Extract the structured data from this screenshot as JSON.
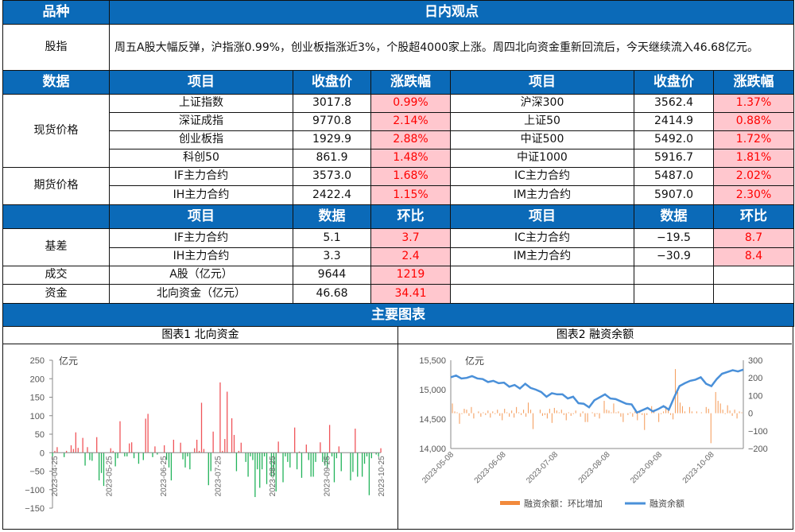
{
  "header": {
    "col1": "品种",
    "col2": "日内观点"
  },
  "index_row": {
    "label": "股指",
    "text": "周五A股大幅反弹，沪指涨0.99%，创业板指涨近3%，个股超4000家上涨。周四北向资金重新回流后，今天继续流入46.68亿元。"
  },
  "price_header": [
    "数据",
    "项目",
    "收盘价",
    "涨跌幅",
    "项目",
    "收盘价",
    "涨跌幅"
  ],
  "spot_label": "现货价格",
  "futures_label": "期货价格",
  "price_rows": [
    [
      "上证指数",
      "3017.8",
      "0.99%",
      "沪深300",
      "3562.4",
      "1.37%"
    ],
    [
      "深证成指",
      "9770.8",
      "2.14%",
      "上证50",
      "2414.9",
      "0.88%"
    ],
    [
      "创业板指",
      "1929.9",
      "2.88%",
      "中证500",
      "5492.0",
      "1.72%"
    ],
    [
      "科创50",
      "861.9",
      "1.48%",
      "中证1000",
      "5916.7",
      "1.81%"
    ],
    [
      "IF主力合约",
      "3573.0",
      "1.68%",
      "IC主力合约",
      "5487.0",
      "2.02%"
    ],
    [
      "IH主力合约",
      "2422.4",
      "1.15%",
      "IM主力合约",
      "5907.0",
      "2.30%"
    ]
  ],
  "basis_header": [
    "项目",
    "数据",
    "环比",
    "项目",
    "数据",
    "环比"
  ],
  "basis_label": "基差",
  "basis_rows": [
    [
      "IF主力合约",
      "5.1",
      "3.7",
      "IC主力合约",
      "−19.5",
      "8.7"
    ],
    [
      "IH主力合约",
      "3.3",
      "2.4",
      "IM主力合约",
      "−30.9",
      "8.4"
    ]
  ],
  "volume_row": [
    "成交",
    "A股（亿元）",
    "9644",
    "1219"
  ],
  "capital_row": [
    "资金",
    "北向资金（亿元）",
    "46.68",
    "34.41"
  ],
  "charts_header": "主要图表",
  "colors": {
    "header": "#0b6ab8",
    "pink": "#ffc7ce",
    "red": "#ff0000",
    "up": "#f0555a",
    "down": "#22b35a",
    "orange": "#f28a3c",
    "blue": "#4a90d9"
  },
  "chart_data": [
    {
      "type": "bar",
      "title": "图表1  北向资金",
      "unit": "亿元",
      "ylim": [
        -150,
        250
      ],
      "yticks": [
        250,
        200,
        150,
        100,
        50,
        0,
        -50,
        -100,
        -150
      ],
      "xticks": [
        "2023-04-25",
        "2023-05-25",
        "2023-06-25",
        "2023-07-25",
        "2023-08-25",
        "2023-09-25",
        "2023-10-25"
      ],
      "values": [
        -10,
        5,
        15,
        0,
        0,
        -12,
        5,
        0,
        20,
        10,
        55,
        13,
        0,
        40,
        -35,
        15,
        -20,
        -22,
        0,
        42,
        -75,
        -55,
        -90,
        0,
        0,
        12,
        5,
        -37,
        -15,
        85,
        0,
        -10,
        -10,
        25,
        28,
        -15,
        0,
        -30,
        0,
        -20,
        92,
        105,
        0,
        -12,
        17,
        -5,
        0,
        0,
        20,
        -20,
        -40,
        -75,
        35,
        0,
        0,
        27,
        -18,
        -40,
        -10,
        -45,
        0,
        12,
        35,
        5,
        135,
        10,
        0,
        -88,
        -50,
        57,
        0,
        0,
        190,
        5,
        37,
        165,
        0,
        93,
        48,
        -50,
        5,
        27,
        0,
        -25,
        -65,
        -10,
        -20,
        -120,
        -45,
        -95,
        -45,
        -10,
        -85,
        0,
        -65,
        -65,
        -105,
        30,
        0,
        -80,
        -10,
        -25,
        -40,
        0,
        68,
        -45,
        3,
        -68,
        0,
        22,
        -20,
        -65,
        -65,
        -25,
        0,
        28,
        -25,
        -35,
        -40,
        75,
        -10,
        -80,
        -15,
        17,
        -50,
        0,
        0,
        0,
        -75,
        -52,
        65,
        -65,
        0,
        -65,
        -30,
        -10,
        -115,
        -15,
        0,
        -5,
        -10,
        12
      ]
    },
    {
      "type": "bar+line",
      "title": "图表2  融资余额",
      "unit": "亿元",
      "ylim_left": [
        14000,
        15500
      ],
      "ylim_right": [
        -200,
        300
      ],
      "yticks_left": [
        "15,500",
        "15,000",
        "14,500",
        "14,000"
      ],
      "yticks_right": [
        "300",
        "200",
        "100",
        "0",
        "−100",
        "−200"
      ],
      "xticks": [
        "2023-05-08",
        "2023-06-08",
        "2023-07-08",
        "2023-08-08",
        "2023-09-08",
        "2023-10-08"
      ],
      "series": [
        {
          "name": "融资余额：环比增加",
          "axis": "right",
          "values": [
            55,
            10,
            5,
            -60,
            -5,
            25,
            20,
            -15,
            35,
            -30,
            0,
            10,
            -20,
            5,
            -10,
            15,
            -25,
            10,
            -5,
            20,
            -15,
            -40,
            25,
            5,
            -20,
            15,
            -25,
            35,
            5,
            -10,
            20,
            -20,
            60,
            20,
            -90,
            0,
            0,
            20,
            -15,
            -10,
            -30,
            25,
            -55,
            30,
            15,
            5,
            20,
            -10,
            -40,
            5,
            -15,
            -5,
            15,
            0,
            -20,
            10,
            -50,
            -50,
            0,
            5,
            -20,
            -5,
            -30,
            0,
            70,
            20,
            15,
            5,
            55,
            5,
            10,
            -20,
            -50,
            0,
            -10,
            5,
            -20,
            10,
            -40,
            10,
            -10,
            -95,
            -10,
            0,
            40,
            20,
            0,
            -50,
            -5,
            10,
            40,
            20,
            -10,
            -35,
            250,
            120,
            60,
            40,
            10,
            0,
            35,
            10,
            0,
            10,
            0,
            5,
            0,
            35,
            25,
            -170,
            0,
            120,
            70,
            55,
            20,
            -5,
            45,
            15,
            -15,
            20,
            -30,
            10,
            5
          ]
        },
        {
          "name": "融资余额",
          "axis": "left",
          "values": [
            15210,
            15240,
            15190,
            15200,
            15230,
            15190,
            15180,
            15130,
            15150,
            15110,
            15120,
            15050,
            15080,
            15020,
            15100,
            15030,
            15000,
            14960,
            14880,
            14940,
            14920,
            14920,
            14850,
            14880,
            14770,
            14760,
            14700,
            14820,
            14870,
            14920,
            14850,
            14840,
            14800,
            14760,
            14750,
            14610,
            14650,
            14690,
            14630,
            14670,
            14720,
            14660,
            14870,
            15060,
            15110,
            15150,
            15170,
            15210,
            15100,
            15060,
            15180,
            15270,
            15300,
            15330,
            15310,
            15340
          ]
        }
      ]
    }
  ]
}
